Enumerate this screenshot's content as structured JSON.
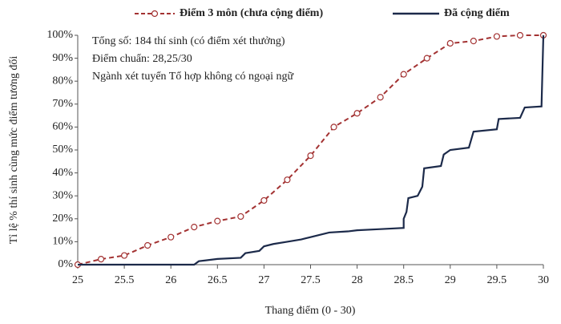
{
  "chart_data": {
    "type": "line",
    "x_label": "Thang điểm (0 - 30)",
    "y_label": "Tỉ lệ % thí sinh cùng mức điểm tương đối",
    "annotations": [
      "Tổng số: 184 thí sinh  (có điểm xét thưởng)",
      "Điểm chuẩn: 28,25/30",
      "Ngành xét tuyển Tổ hợp không có ngoại ngữ"
    ],
    "xlim": [
      25,
      30
    ],
    "xticks": [
      25,
      25.5,
      26,
      26.5,
      27,
      27.5,
      28,
      28.5,
      29,
      29.5,
      30
    ],
    "ylim": [
      0,
      100
    ],
    "yticks": [
      {
        "value": 0,
        "label": "0%"
      },
      {
        "value": 10,
        "label": "10%"
      },
      {
        "value": 20,
        "label": "20%"
      },
      {
        "value": 30,
        "label": "30%"
      },
      {
        "value": 40,
        "label": "40%"
      },
      {
        "value": 50,
        "label": "50%"
      },
      {
        "value": 60,
        "label": "60%"
      },
      {
        "value": 70,
        "label": "70%"
      },
      {
        "value": 80,
        "label": "80%"
      },
      {
        "value": 90,
        "label": "90%"
      },
      {
        "value": 100,
        "label": "100%"
      }
    ],
    "grid": false,
    "series": [
      {
        "name": "Điểm 3 môn (chưa cộng điểm)",
        "color": "#a33232",
        "dash": true,
        "markers": true,
        "x": [
          25,
          25.25,
          25.5,
          25.75,
          26,
          26.25,
          26.5,
          26.75,
          27,
          27.25,
          27.5,
          27.75,
          28,
          28.25,
          28.5,
          28.75,
          29,
          29.25,
          29.5,
          29.75,
          30
        ],
        "values": [
          0,
          2.4,
          4,
          8.4,
          12,
          16.4,
          19,
          21,
          28,
          37,
          47.5,
          60,
          66,
          73,
          83,
          90,
          96.5,
          97.5,
          99.5,
          100,
          100
        ]
      },
      {
        "name": "Đã cộng điểm",
        "color": "#1c2a4a",
        "dash": false,
        "markers": false,
        "x": [
          25,
          26.25,
          26.3,
          26.5,
          26.75,
          26.8,
          26.95,
          27,
          27.1,
          27.25,
          27.4,
          27.5,
          27.6,
          27.7,
          27.9,
          28,
          28.25,
          28.5,
          28.5,
          28.53,
          28.55,
          28.65,
          28.7,
          28.72,
          28.9,
          28.93,
          29,
          29.2,
          29.25,
          29.5,
          29.52,
          29.75,
          29.8,
          29.98,
          30
        ],
        "values": [
          0,
          0,
          1.5,
          2.5,
          3,
          5,
          6,
          8,
          9,
          10,
          11,
          12,
          13,
          14,
          14.5,
          15,
          15.5,
          16,
          20,
          23,
          29,
          30,
          34,
          42,
          43,
          48,
          50,
          51,
          58,
          59,
          63.5,
          64,
          68.5,
          69,
          100
        ]
      }
    ]
  }
}
